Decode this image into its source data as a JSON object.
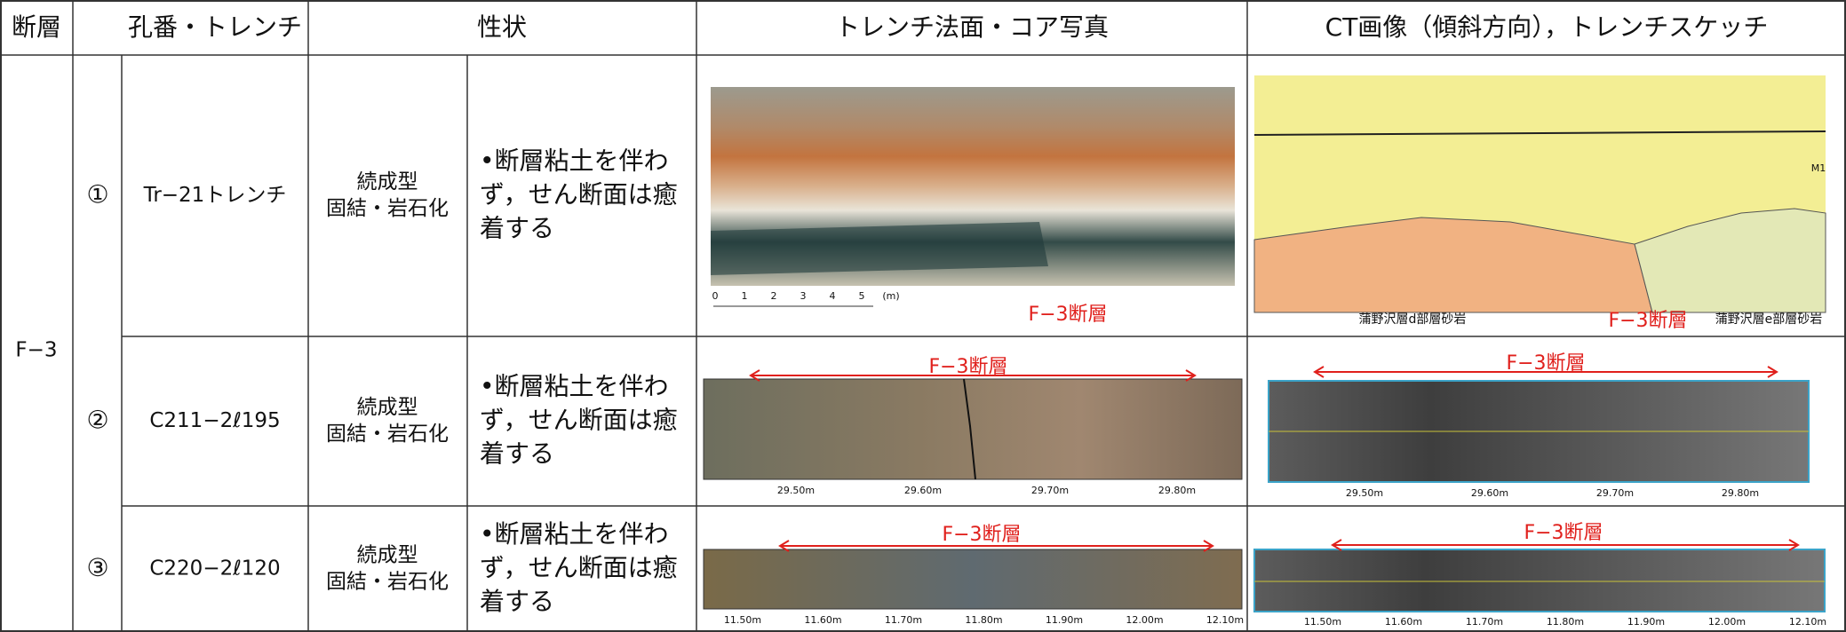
{
  "header": [
    "断層",
    "孔番・トレンチ",
    "性状",
    "トレンチ法面・コア写真",
    "CT画像（傾斜方向），トレンチスケッチ"
  ],
  "fault": "F−3",
  "rows": [
    {
      "no": "①",
      "name": "Tr−21トレンチ",
      "type": [
        "続成型",
        "固結・岩石化"
      ],
      "description": [
        "•断層粘土を伴わ",
        "ず，せん断面は癒",
        "着する"
      ],
      "photo": {
        "label": "F−3断層",
        "scale": [
          "0",
          "1",
          "2",
          "3",
          "4",
          "5",
          "(m)"
        ]
      },
      "sketch": {
        "labels": [
          "蒲野沢層d部層砂岩",
          "F−3断層",
          "蒲野沢層e部層砂岩",
          "M1"
        ]
      }
    },
    {
      "no": "②",
      "name": "C211−2ℓ195",
      "type": [
        "続成型",
        "固結・岩石化"
      ],
      "description": [
        "•断層粘土を伴わ",
        "ず，せん断面は癒",
        "着する"
      ],
      "photo": {
        "label": "F−3断層",
        "scale": [
          "29.50m",
          "29.60m",
          "29.70m",
          "29.80m"
        ]
      },
      "ct": {
        "label": "F−3断層",
        "scale": [
          "29.50m",
          "29.60m",
          "29.70m",
          "29.80m"
        ]
      }
    },
    {
      "no": "③",
      "name": "C220−2ℓ120",
      "type": [
        "続成型",
        "固結・岩石化"
      ],
      "description": [
        "•断層粘土を伴わ",
        "ず，せん断面は癒",
        "着する"
      ],
      "photo": {
        "label": "F−3断層",
        "scale": [
          "11.50m",
          "11.60m",
          "11.70m",
          "11.80m",
          "11.90m",
          "12.00m",
          "12.10m"
        ]
      },
      "ct": {
        "label": "F−3断層",
        "scale": [
          "11.50m",
          "11.60m",
          "11.70m",
          "11.80m",
          "11.90m",
          "12.00m",
          "12.10m"
        ]
      }
    }
  ]
}
